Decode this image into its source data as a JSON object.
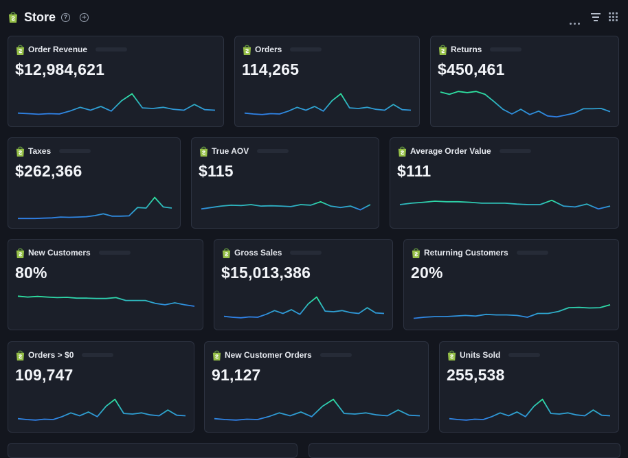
{
  "header": {
    "title": "Store",
    "help_icon": "help-circle-icon",
    "add_icon": "plus-circle-icon",
    "more_icon": "more-horizontal-icon",
    "filter_icon": "filter-icon",
    "grid_icon": "grid-icon",
    "help_glyph": "?",
    "add_glyph": "+"
  },
  "colors": {
    "background": "#13161e",
    "card": "#1b1f29",
    "line_low": "#2f7fe8",
    "line_high": "#2ee6a0",
    "brand_green": "#95bf47"
  },
  "cards": [
    {
      "title": "Order Revenue",
      "value": "$12,984,621",
      "trend": [
        0.15,
        0.13,
        0.11,
        0.13,
        0.12,
        0.22,
        0.35,
        0.25,
        0.38,
        0.22,
        0.58,
        0.82,
        0.33,
        0.31,
        0.35,
        0.28,
        0.25,
        0.45,
        0.27,
        0.25
      ]
    },
    {
      "title": "Orders",
      "value": "114,265",
      "trend": [
        0.15,
        0.12,
        0.1,
        0.13,
        0.12,
        0.22,
        0.35,
        0.25,
        0.38,
        0.22,
        0.58,
        0.82,
        0.33,
        0.31,
        0.35,
        0.28,
        0.25,
        0.45,
        0.27,
        0.25
      ]
    },
    {
      "title": "Returns",
      "value": "$450,461",
      "trend": [
        0.88,
        0.8,
        0.9,
        0.86,
        0.9,
        0.8,
        0.55,
        0.28,
        0.12,
        0.28,
        0.1,
        0.22,
        0.05,
        0.02,
        0.08,
        0.15,
        0.3,
        0.3,
        0.31,
        0.2
      ]
    },
    {
      "title": "Taxes",
      "value": "$262,366",
      "trend": [
        0.02,
        0.02,
        0.02,
        0.03,
        0.04,
        0.07,
        0.06,
        0.07,
        0.08,
        0.12,
        0.18,
        0.1,
        0.1,
        0.11,
        0.4,
        0.38,
        0.75,
        0.42,
        0.38
      ]
    },
    {
      "title": "True AOV",
      "value": "$115",
      "trend": [
        0.35,
        0.4,
        0.45,
        0.48,
        0.47,
        0.5,
        0.45,
        0.46,
        0.45,
        0.43,
        0.5,
        0.48,
        0.6,
        0.45,
        0.4,
        0.45,
        0.32,
        0.5
      ]
    },
    {
      "title": "Average Order Value",
      "value": "$111",
      "trend": [
        0.5,
        0.55,
        0.58,
        0.62,
        0.6,
        0.6,
        0.58,
        0.55,
        0.55,
        0.55,
        0.52,
        0.5,
        0.5,
        0.65,
        0.45,
        0.42,
        0.52,
        0.35,
        0.45
      ]
    },
    {
      "title": "New Customers",
      "value": "80%",
      "trend": [
        0.85,
        0.82,
        0.84,
        0.82,
        0.8,
        0.81,
        0.78,
        0.78,
        0.77,
        0.77,
        0.8,
        0.7,
        0.7,
        0.7,
        0.6,
        0.55,
        0.62,
        0.55,
        0.5
      ]
    },
    {
      "title": "Gross Sales",
      "value": "$15,013,386",
      "trend": [
        0.15,
        0.12,
        0.1,
        0.13,
        0.12,
        0.22,
        0.35,
        0.25,
        0.38,
        0.22,
        0.58,
        0.82,
        0.33,
        0.31,
        0.35,
        0.28,
        0.25,
        0.45,
        0.27,
        0.25
      ]
    },
    {
      "title": "Returning Customers",
      "value": "20%",
      "trend": [
        0.08,
        0.12,
        0.14,
        0.14,
        0.16,
        0.18,
        0.16,
        0.22,
        0.2,
        0.2,
        0.18,
        0.12,
        0.25,
        0.25,
        0.32,
        0.45,
        0.46,
        0.44,
        0.45,
        0.55
      ]
    },
    {
      "title": "Orders > $0",
      "value": "109,747",
      "trend": [
        0.15,
        0.12,
        0.1,
        0.13,
        0.12,
        0.22,
        0.35,
        0.25,
        0.38,
        0.22,
        0.58,
        0.82,
        0.33,
        0.31,
        0.35,
        0.28,
        0.25,
        0.45,
        0.27,
        0.25
      ]
    },
    {
      "title": "New Customer Orders",
      "value": "91,127",
      "trend": [
        0.15,
        0.12,
        0.1,
        0.13,
        0.12,
        0.22,
        0.35,
        0.25,
        0.38,
        0.22,
        0.58,
        0.82,
        0.33,
        0.31,
        0.35,
        0.28,
        0.25,
        0.45,
        0.27,
        0.25
      ]
    },
    {
      "title": "Units Sold",
      "value": "255,538",
      "trend": [
        0.15,
        0.12,
        0.1,
        0.13,
        0.12,
        0.22,
        0.35,
        0.25,
        0.38,
        0.22,
        0.58,
        0.82,
        0.33,
        0.31,
        0.35,
        0.28,
        0.25,
        0.45,
        0.27,
        0.25
      ]
    }
  ]
}
